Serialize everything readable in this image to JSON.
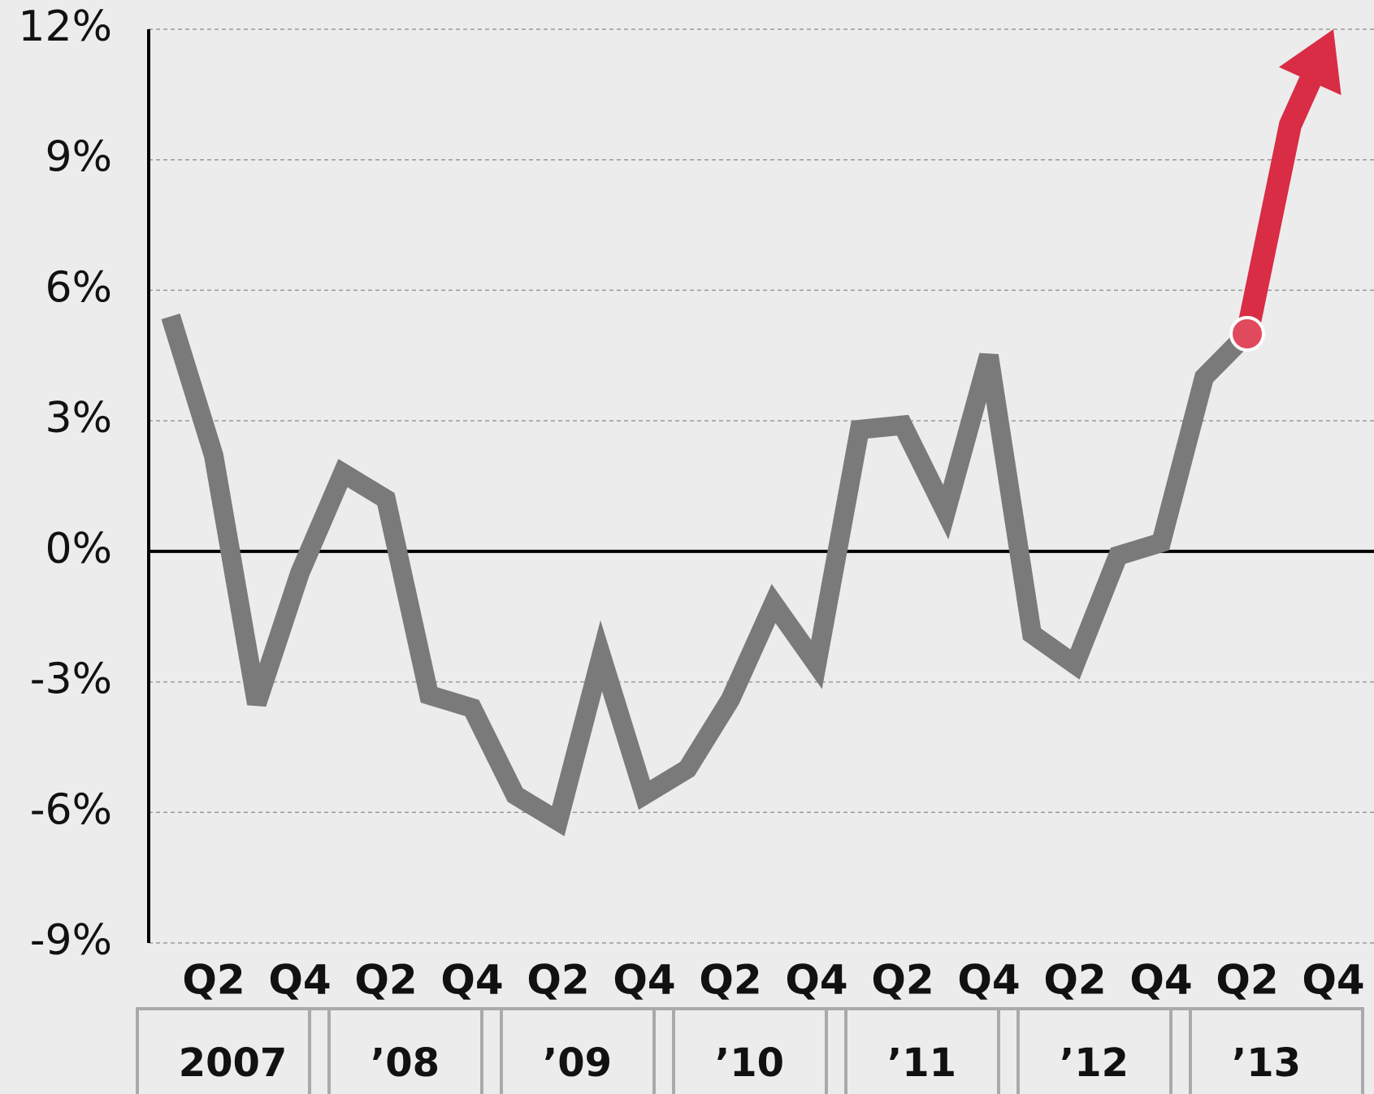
{
  "chart_data": {
    "type": "line",
    "categories": [
      null,
      "Q2",
      null,
      "Q4",
      null,
      "Q2",
      null,
      "Q4",
      null,
      "Q2",
      null,
      "Q4",
      null,
      "Q2",
      null,
      "Q4",
      null,
      "Q2",
      null,
      "Q4",
      null,
      "Q2",
      null,
      "Q4",
      null,
      "Q2",
      null,
      "Q4"
    ],
    "year_labels": [
      "2007",
      "’08",
      "’09",
      "’10",
      "’11",
      "’12",
      "’13"
    ],
    "series": [
      {
        "color": "#7a7a7a",
        "values": [
          5.4,
          2.2,
          -3.5,
          -0.5,
          1.8,
          1.2,
          -3.3,
          -3.6,
          -5.6,
          -6.2,
          -2.4,
          -5.6,
          -5.0,
          -3.4,
          -1.2,
          -2.6,
          2.8,
          2.9,
          0.9,
          4.5,
          -1.9,
          -2.6,
          -0.1,
          0.2,
          4.0,
          5.0,
          null,
          null
        ]
      },
      {
        "color": "#d92c45",
        "values": [
          null,
          null,
          null,
          null,
          null,
          null,
          null,
          null,
          null,
          null,
          null,
          null,
          null,
          null,
          null,
          null,
          null,
          null,
          null,
          null,
          null,
          null,
          null,
          null,
          null,
          5.0,
          9.8,
          12
        ]
      }
    ],
    "ylim": [
      -9,
      12
    ],
    "yticks": [
      {
        "value": -9,
        "label": "-9%"
      },
      {
        "value": -6,
        "label": "-6%"
      },
      {
        "value": -3,
        "label": "-3%"
      },
      {
        "value": 0,
        "label": "0%"
      },
      {
        "value": 3,
        "label": "3%"
      },
      {
        "value": 6,
        "label": "6%"
      },
      {
        "value": 9,
        "label": "9%"
      },
      {
        "value": 12,
        "label": "12%"
      }
    ],
    "grid": true
  }
}
